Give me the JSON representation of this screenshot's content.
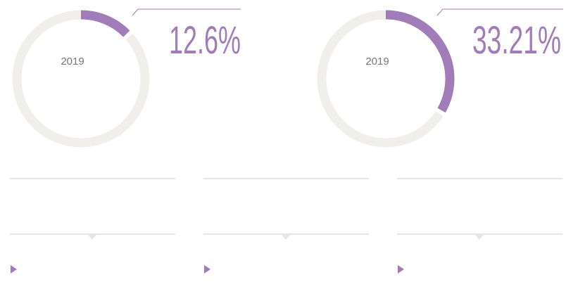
{
  "chart_data": [
    {
      "type": "donut",
      "center_label": "2019",
      "values": [
        12.6
      ],
      "value_labels": [
        "12.6%"
      ],
      "ylim": [
        0,
        100
      ],
      "color": "#a07cb8",
      "track_color": "#f1efea"
    },
    {
      "type": "donut",
      "center_label": "2019",
      "values": [
        33.21
      ],
      "value_labels": [
        "33.21%"
      ],
      "ylim": [
        0,
        100
      ],
      "color": "#a07cb8",
      "track_color": "#f1efea"
    }
  ]
}
